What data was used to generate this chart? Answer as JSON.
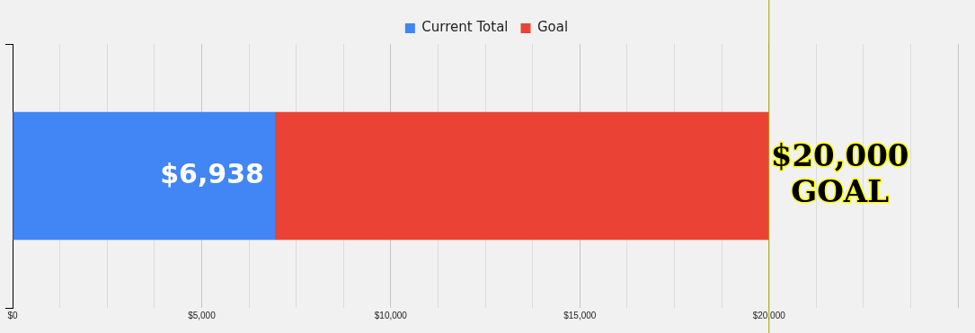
{
  "chart_data": {
    "type": "bar",
    "orientation": "horizontal",
    "stacked": true,
    "categories": [
      null
    ],
    "series": [
      {
        "name": "Current Total",
        "color": "#4285f4",
        "values": [
          6938
        ],
        "value_labels": [
          "$6,938"
        ]
      },
      {
        "name": "Goal",
        "color": "#ea4335",
        "values": [
          13062
        ],
        "value_labels": [
          null
        ]
      }
    ],
    "xlim": [
      0,
      25400
    ],
    "xticks": [
      {
        "value": 0,
        "label": "$0"
      },
      {
        "value": 1250,
        "label": null
      },
      {
        "value": 2500,
        "label": null
      },
      {
        "value": 3750,
        "label": null
      },
      {
        "value": 5000,
        "label": "$5,000"
      },
      {
        "value": 6250,
        "label": null
      },
      {
        "value": 7500,
        "label": null
      },
      {
        "value": 8750,
        "label": null
      },
      {
        "value": 10000,
        "label": "$10,000"
      },
      {
        "value": 11250,
        "label": null
      },
      {
        "value": 12500,
        "label": null
      },
      {
        "value": 13750,
        "label": null
      },
      {
        "value": 15000,
        "label": "$15,000"
      },
      {
        "value": 16250,
        "label": null
      },
      {
        "value": 17500,
        "label": null
      },
      {
        "value": 18750,
        "label": null
      },
      {
        "value": 20000,
        "label": "$20,000"
      },
      {
        "value": 21250,
        "label": null
      },
      {
        "value": 22500,
        "label": null
      },
      {
        "value": 23750,
        "label": null
      },
      {
        "value": 25000,
        "label": null
      }
    ],
    "ref_lines": [
      {
        "axis": "x",
        "value": 20000,
        "color": "#a3a300"
      }
    ],
    "annotations": [
      {
        "text": "$20,000\nGOAL",
        "x": 20000
      }
    ],
    "grid": "x",
    "legend": "top"
  }
}
